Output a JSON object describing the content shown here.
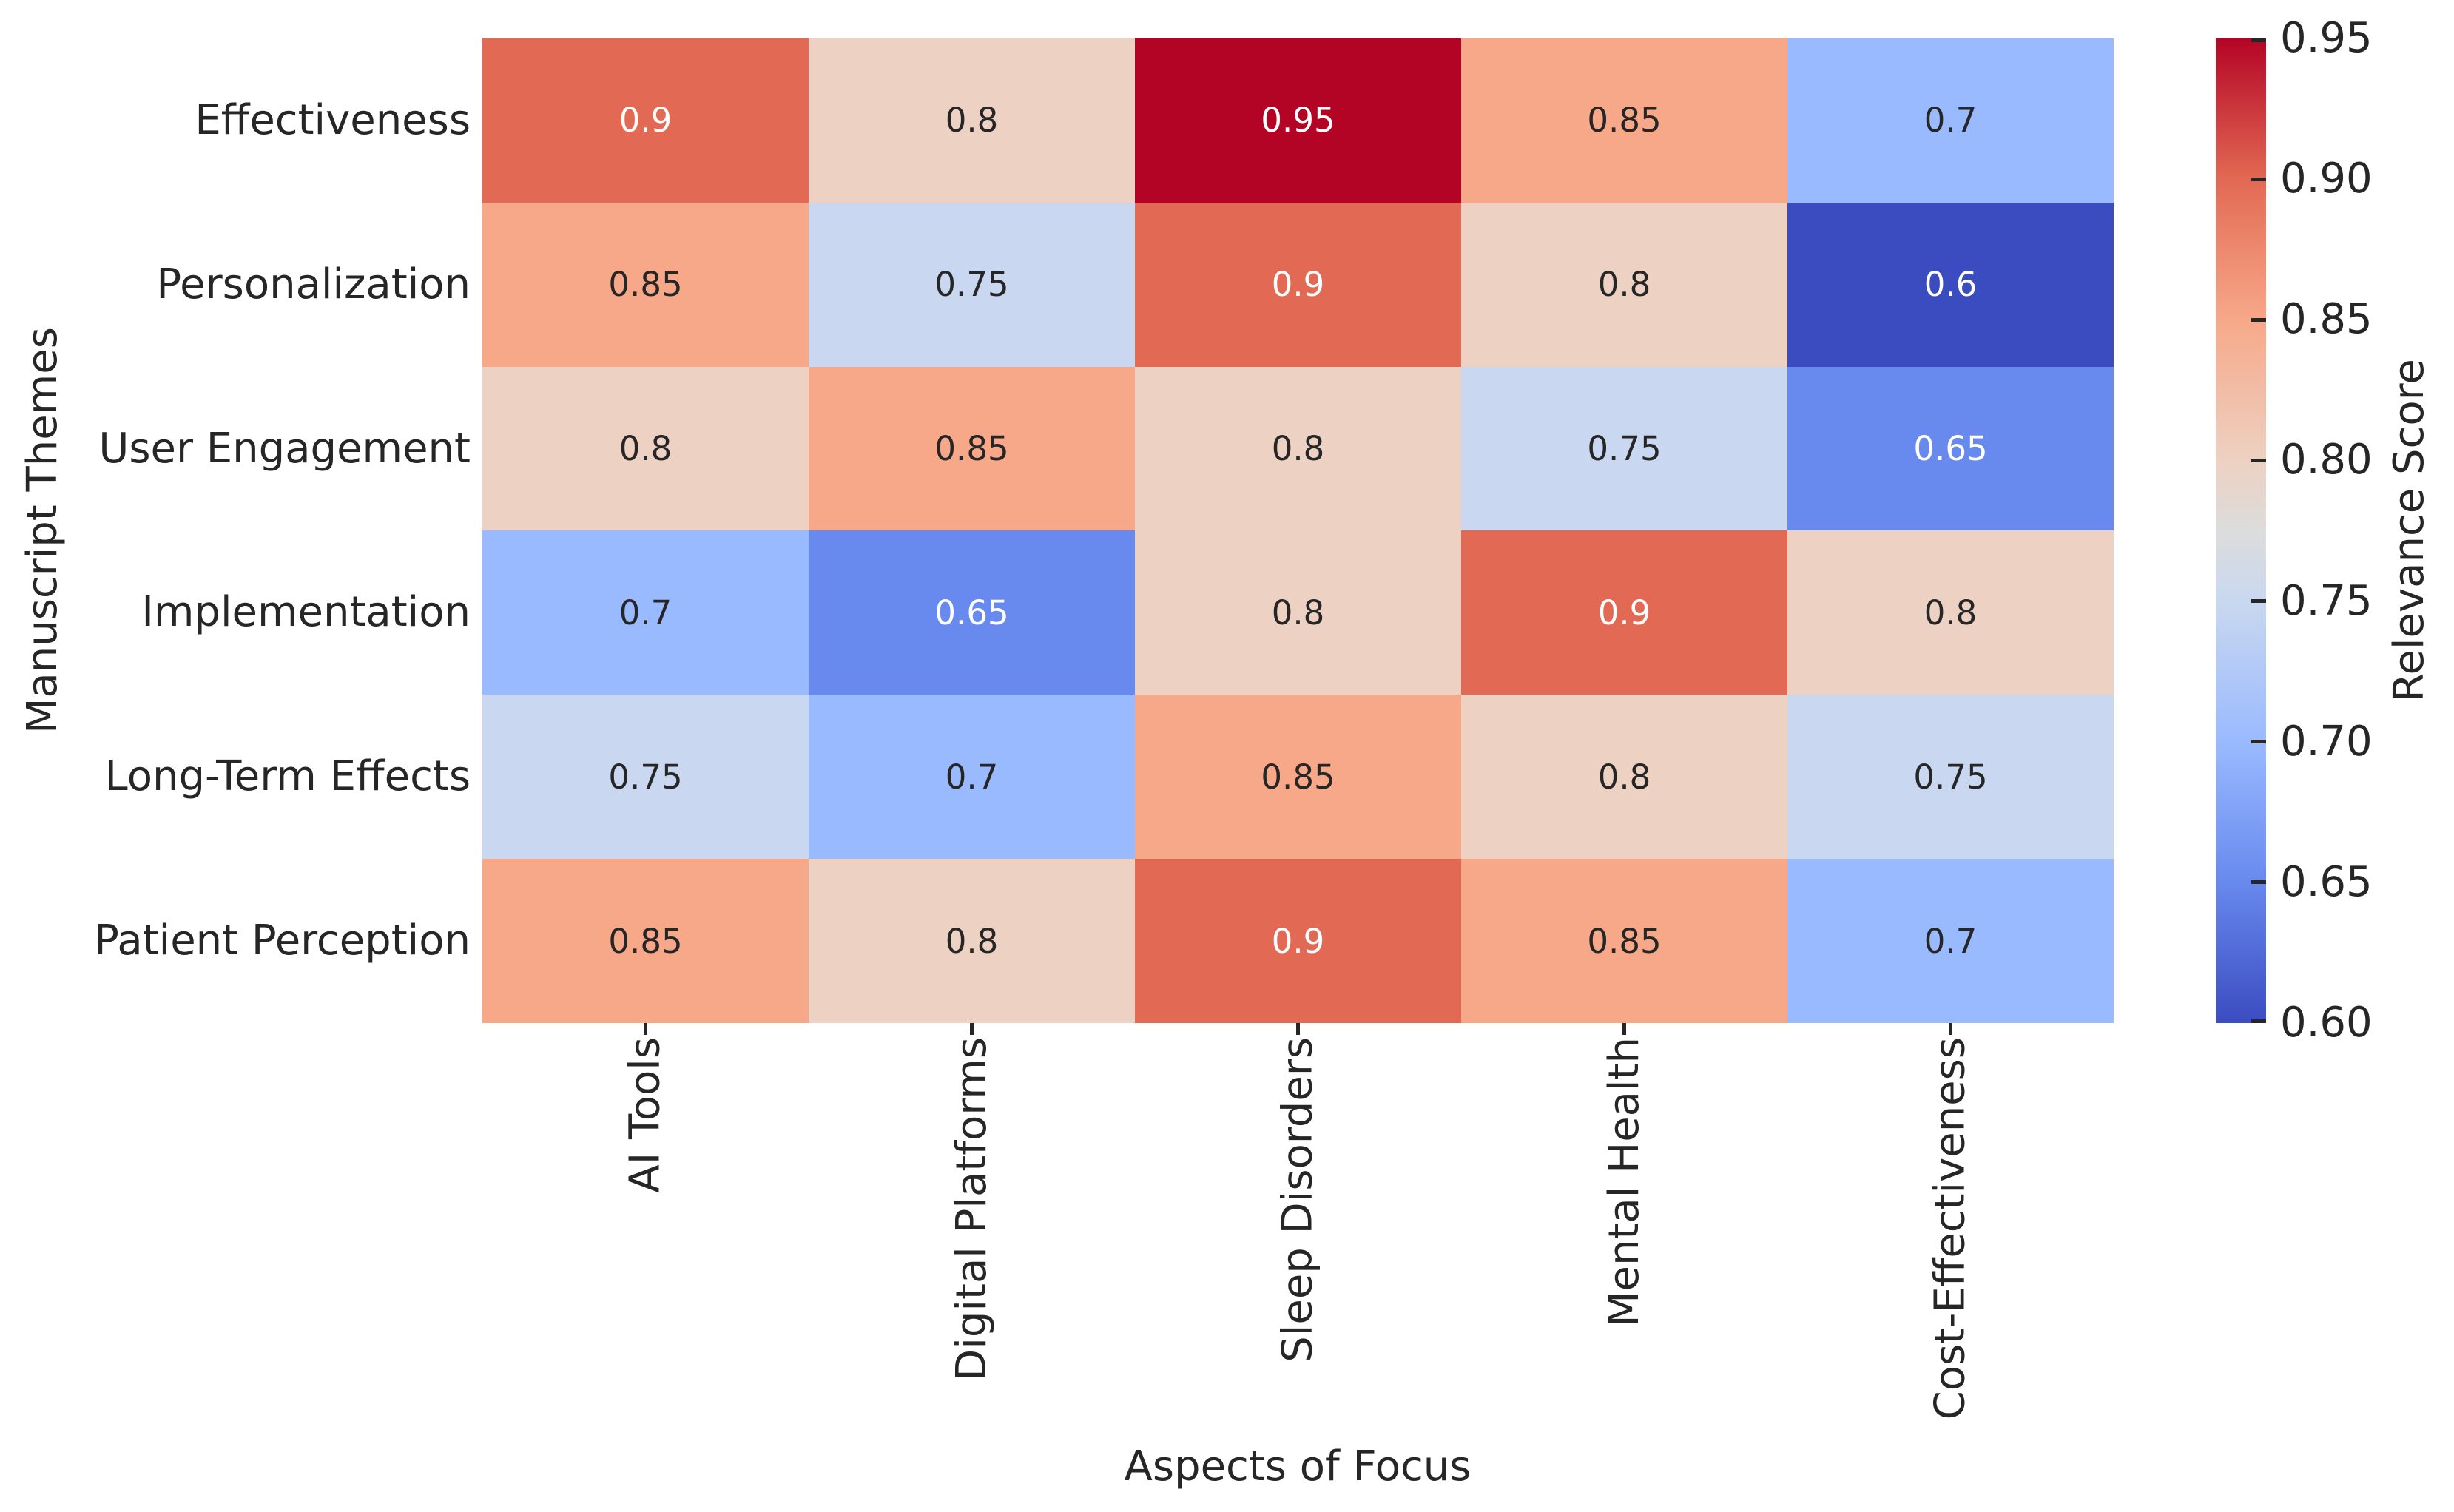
{
  "chart_data": {
    "type": "heatmap",
    "title": "",
    "xlabel": "Aspects of Focus",
    "ylabel": "Manuscript Themes",
    "colorbar_label": "Relevance Score",
    "columns": [
      "AI Tools",
      "Digital Platforms",
      "Sleep Disorders",
      "Mental Health",
      "Cost-Effectiveness"
    ],
    "rows": [
      "Effectiveness",
      "Personalization",
      "User Engagement",
      "Implementation",
      "Long-Term Effects",
      "Patient Perception"
    ],
    "values": [
      [
        0.9,
        0.8,
        0.95,
        0.85,
        0.7
      ],
      [
        0.85,
        0.75,
        0.9,
        0.8,
        0.6
      ],
      [
        0.8,
        0.85,
        0.8,
        0.75,
        0.65
      ],
      [
        0.7,
        0.65,
        0.8,
        0.9,
        0.8
      ],
      [
        0.75,
        0.7,
        0.85,
        0.8,
        0.75
      ],
      [
        0.85,
        0.8,
        0.9,
        0.85,
        0.7
      ]
    ],
    "vmin": 0.6,
    "vmax": 0.95,
    "colormap_name": "coolwarm",
    "grid": "off",
    "legend_position": "colorbar-right",
    "colorbar_tick_labels": [
      "0.95",
      "0.90",
      "0.85",
      "0.80",
      "0.75",
      "0.70",
      "0.65",
      "0.60"
    ],
    "colorbar_tick_values": [
      0.95,
      0.9,
      0.85,
      0.8,
      0.75,
      0.7,
      0.65,
      0.6
    ],
    "cell_colors": {
      "0.6": "#3b4cc0",
      "0.65": "#6889ee",
      "0.7": "#9abaff",
      "0.75": "#c9d8f0",
      "0.8": "#edd1c2",
      "0.85": "#f7a889",
      "0.9": "#e26953",
      "0.95": "#b40426"
    },
    "annot_text_colors": {
      "0.6": "#ffffff",
      "0.65": "#ffffff",
      "0.7": "#262626",
      "0.75": "#262626",
      "0.8": "#262626",
      "0.85": "#262626",
      "0.9": "#ffffff",
      "0.95": "#ffffff"
    },
    "colorbar_gradient_stops": [
      {
        "pos": 0.0,
        "color": "#3b4cc0"
      },
      {
        "pos": 0.1429,
        "color": "#6889ee"
      },
      {
        "pos": 0.2857,
        "color": "#9abaff"
      },
      {
        "pos": 0.4286,
        "color": "#c9d8f0"
      },
      {
        "pos": 0.5,
        "color": "#dcdcdc"
      },
      {
        "pos": 0.5714,
        "color": "#edd1c2"
      },
      {
        "pos": 0.7143,
        "color": "#f7a889"
      },
      {
        "pos": 0.8571,
        "color": "#e26953"
      },
      {
        "pos": 1.0,
        "color": "#b40426"
      }
    ],
    "text_color": "#262626",
    "background_color": "#ffffff"
  }
}
